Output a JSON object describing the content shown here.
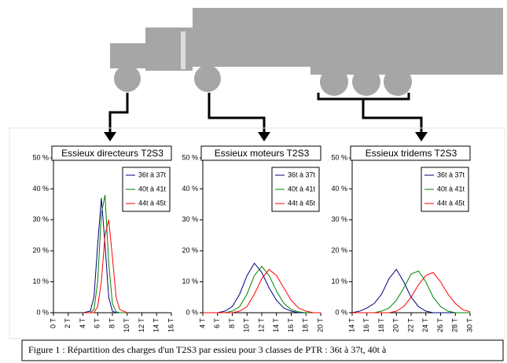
{
  "chart_data": [
    {
      "type": "line",
      "title": "Essieux directeurs T2S3",
      "x": [
        4,
        5,
        5.5,
        6,
        6.5,
        7,
        7.5,
        8,
        8.5,
        9,
        10
      ],
      "series": [
        {
          "name": "36t à 37t",
          "color": "#000080",
          "values": [
            0,
            0.5,
            5,
            22,
            37,
            22,
            5,
            0.5,
            0,
            0,
            0
          ]
        },
        {
          "name": "40t à 41t",
          "color": "#008000",
          "values": [
            0,
            0,
            1,
            10,
            32,
            38,
            16,
            3,
            0.3,
            0,
            0
          ]
        },
        {
          "name": "44t à 45t",
          "color": "#ff0000",
          "values": [
            0,
            0,
            0,
            2,
            10,
            25,
            30,
            18,
            5,
            1,
            0
          ]
        }
      ],
      "xlim": [
        0,
        16
      ],
      "xticks": [
        {
          "value": 0,
          "label": "0 T"
        },
        {
          "value": 2,
          "label": "2 T"
        },
        {
          "value": 4,
          "label": "4 T"
        },
        {
          "value": 6,
          "label": "6 T"
        },
        {
          "value": 8,
          "label": "8 T"
        },
        {
          "value": 10,
          "label": "10 T"
        },
        {
          "value": 12,
          "label": "12 T"
        },
        {
          "value": 14,
          "label": "14 T"
        },
        {
          "value": 16,
          "label": "16 T"
        }
      ],
      "ylim": [
        0,
        50
      ],
      "yticks": [
        {
          "value": 0,
          "label": "0 %"
        },
        {
          "value": 10,
          "label": "10 %"
        },
        {
          "value": 20,
          "label": "20 %"
        },
        {
          "value": 30,
          "label": "30 %"
        },
        {
          "value": 40,
          "label": "40 %"
        },
        {
          "value": 50,
          "label": "50 %"
        }
      ]
    },
    {
      "type": "line",
      "title": "Essieux moteurs T2S3",
      "x": [
        4,
        5,
        6,
        7,
        8,
        9,
        10,
        11,
        12,
        13,
        14,
        15,
        16,
        17,
        18,
        19,
        20
      ],
      "series": [
        {
          "name": "36t à 37t",
          "color": "#000080",
          "values": [
            0,
            0,
            0,
            0.5,
            2,
            6,
            12,
            16,
            13,
            8,
            4,
            1.5,
            0.5,
            0,
            0,
            0,
            0
          ]
        },
        {
          "name": "40t à 41t",
          "color": "#008000",
          "values": [
            0,
            0,
            0,
            0,
            0.5,
            2,
            6,
            12,
            15,
            12,
            7,
            3,
            1,
            0.3,
            0,
            0,
            0
          ]
        },
        {
          "name": "44t à 45t",
          "color": "#ff0000",
          "values": [
            0,
            0,
            0,
            0,
            0,
            0.5,
            2,
            6,
            11,
            14,
            12,
            8,
            4,
            1.5,
            0.5,
            0,
            0
          ]
        }
      ],
      "xlim": [
        4,
        20
      ],
      "xticks": [
        {
          "value": 4,
          "label": "4 T"
        },
        {
          "value": 6,
          "label": "6 T"
        },
        {
          "value": 8,
          "label": "8 T"
        },
        {
          "value": 10,
          "label": "10 T"
        },
        {
          "value": 12,
          "label": "12 T"
        },
        {
          "value": 14,
          "label": "14 T"
        },
        {
          "value": 16,
          "label": "16 T"
        },
        {
          "value": 18,
          "label": "18 T"
        },
        {
          "value": 20,
          "label": "20 T"
        }
      ],
      "ylim": [
        0,
        50
      ],
      "yticks": [
        {
          "value": 0,
          "label": "0 %"
        },
        {
          "value": 10,
          "label": "10 %"
        },
        {
          "value": 20,
          "label": "20 %"
        },
        {
          "value": 30,
          "label": "30 %"
        },
        {
          "value": 40,
          "label": "40 %"
        },
        {
          "value": 50,
          "label": "50 %"
        }
      ]
    },
    {
      "type": "line",
      "title": "Essieux tridems T2S3",
      "x": [
        14,
        15,
        16,
        17,
        18,
        19,
        20,
        21,
        22,
        23,
        24,
        25,
        26,
        27,
        28,
        29,
        30
      ],
      "series": [
        {
          "name": "36t à 37t",
          "color": "#000080",
          "values": [
            0,
            0.5,
            1.5,
            3,
            6,
            11,
            14,
            10,
            5,
            2,
            0.5,
            0,
            0,
            0,
            0,
            0,
            0
          ]
        },
        {
          "name": "40t à 41t",
          "color": "#008000",
          "values": [
            0,
            0,
            0,
            0,
            0.5,
            1.5,
            4,
            8,
            12.5,
            13.5,
            10,
            5,
            2,
            0.5,
            0,
            0,
            0
          ]
        },
        {
          "name": "44t à 45t",
          "color": "#ff0000",
          "values": [
            0,
            0,
            0,
            0,
            0,
            0,
            0.5,
            2,
            5,
            9,
            12,
            13,
            10,
            6,
            3,
            1,
            0.3
          ]
        }
      ],
      "xlim": [
        14,
        30
      ],
      "xticks": [
        {
          "value": 14,
          "label": "14 T"
        },
        {
          "value": 16,
          "label": "16 T"
        },
        {
          "value": 18,
          "label": "18 T"
        },
        {
          "value": 20,
          "label": "20 T"
        },
        {
          "value": 22,
          "label": "22 T"
        },
        {
          "value": 24,
          "label": "24 T"
        },
        {
          "value": 26,
          "label": "26 T"
        },
        {
          "value": 28,
          "label": "28 T"
        },
        {
          "value": 30,
          "label": "30 T"
        }
      ],
      "ylim": [
        0,
        50
      ],
      "yticks": [
        {
          "value": 0,
          "label": "0 %"
        },
        {
          "value": 10,
          "label": "10 %"
        },
        {
          "value": 20,
          "label": "20 %"
        },
        {
          "value": 30,
          "label": "30 %"
        },
        {
          "value": 40,
          "label": "40 %"
        },
        {
          "value": 50,
          "label": "50 %"
        }
      ]
    }
  ],
  "caption": "Figure 1 : Répartition des charges d'un T2S3 par essieu pour 3 classes de PTR : 36t à 37t, 40t à"
}
